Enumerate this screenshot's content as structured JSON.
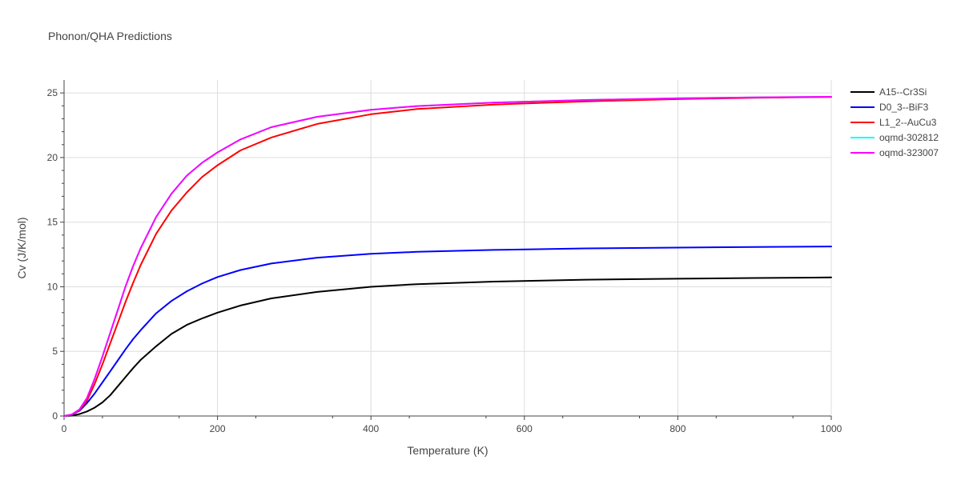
{
  "colors": {
    "A15--Cr3Si": "#000000",
    "D0_3--BiF3": "#0000ff",
    "L1_2--AuCu3": "#ff0000",
    "oqmd-302812": "#00ffff",
    "oqmd-323007": "#ff00ff"
  },
  "chart_data": {
    "type": "line",
    "title": "Phonon/QHA Predictions",
    "xlabel": "Temperature (K)",
    "ylabel": "Cv (J/K/mol)",
    "xlim": [
      0,
      1000
    ],
    "ylim": [
      0,
      26
    ],
    "x_ticks": [
      0,
      200,
      400,
      600,
      800,
      1000
    ],
    "y_ticks": [
      0,
      5,
      10,
      15,
      20,
      25
    ],
    "grid": true,
    "legend_position": "top-right",
    "series": [
      {
        "name": "A15--Cr3Si",
        "color": "#000000",
        "x": [
          0,
          10,
          20,
          30,
          40,
          50,
          60,
          70,
          80,
          90,
          100,
          120,
          140,
          160,
          180,
          200,
          230,
          270,
          330,
          400,
          460,
          560,
          680,
          800,
          900,
          1000
        ],
        "y": [
          0,
          0.03,
          0.15,
          0.35,
          0.65,
          1.05,
          1.6,
          2.3,
          3.0,
          3.7,
          4.35,
          5.4,
          6.35,
          7.05,
          7.55,
          8.0,
          8.55,
          9.1,
          9.6,
          10.0,
          10.2,
          10.4,
          10.55,
          10.62,
          10.68,
          10.72
        ]
      },
      {
        "name": "D0_3--BiF3",
        "color": "#0000ff",
        "x": [
          0,
          10,
          20,
          30,
          40,
          50,
          60,
          70,
          80,
          90,
          100,
          120,
          140,
          160,
          180,
          200,
          230,
          270,
          330,
          400,
          460,
          560,
          680,
          800,
          900,
          1000
        ],
        "y": [
          0,
          0.1,
          0.4,
          1.0,
          1.75,
          2.6,
          3.45,
          4.3,
          5.15,
          5.95,
          6.65,
          7.95,
          8.9,
          9.65,
          10.25,
          10.75,
          11.3,
          11.8,
          12.25,
          12.55,
          12.7,
          12.85,
          12.97,
          13.03,
          13.08,
          13.12
        ]
      },
      {
        "name": "L1_2--AuCu3",
        "color": "#ff0000",
        "x": [
          0,
          10,
          20,
          30,
          40,
          50,
          60,
          70,
          80,
          90,
          100,
          120,
          140,
          160,
          180,
          200,
          230,
          270,
          330,
          400,
          460,
          560,
          680,
          800,
          900,
          1000
        ],
        "y": [
          0,
          0.1,
          0.45,
          1.2,
          2.5,
          4.0,
          5.6,
          7.2,
          8.8,
          10.3,
          11.7,
          14.1,
          15.9,
          17.3,
          18.5,
          19.4,
          20.55,
          21.55,
          22.6,
          23.35,
          23.75,
          24.1,
          24.35,
          24.52,
          24.62,
          24.68
        ]
      },
      {
        "name": "oqmd-302812",
        "color": "#00ffff",
        "x": [
          0,
          10,
          20,
          30,
          40,
          50,
          60,
          70,
          80,
          90,
          100,
          120,
          140,
          160,
          180,
          200,
          230,
          270,
          330,
          400,
          460,
          560,
          680,
          800,
          900,
          1000
        ],
        "y": [
          0,
          0.12,
          0.5,
          1.4,
          2.9,
          4.6,
          6.4,
          8.2,
          10.0,
          11.6,
          13.0,
          15.4,
          17.2,
          18.6,
          19.6,
          20.4,
          21.4,
          22.35,
          23.15,
          23.7,
          23.98,
          24.25,
          24.45,
          24.58,
          24.65,
          24.7
        ]
      },
      {
        "name": "oqmd-323007",
        "color": "#ff00ff",
        "x": [
          0,
          10,
          20,
          30,
          40,
          50,
          60,
          70,
          80,
          90,
          100,
          120,
          140,
          160,
          180,
          200,
          230,
          270,
          330,
          400,
          460,
          560,
          680,
          800,
          900,
          1000
        ],
        "y": [
          0,
          0.12,
          0.5,
          1.4,
          2.9,
          4.6,
          6.4,
          8.2,
          10.0,
          11.6,
          13.0,
          15.4,
          17.2,
          18.6,
          19.6,
          20.4,
          21.4,
          22.35,
          23.15,
          23.7,
          23.98,
          24.25,
          24.45,
          24.58,
          24.65,
          24.7
        ]
      }
    ]
  }
}
